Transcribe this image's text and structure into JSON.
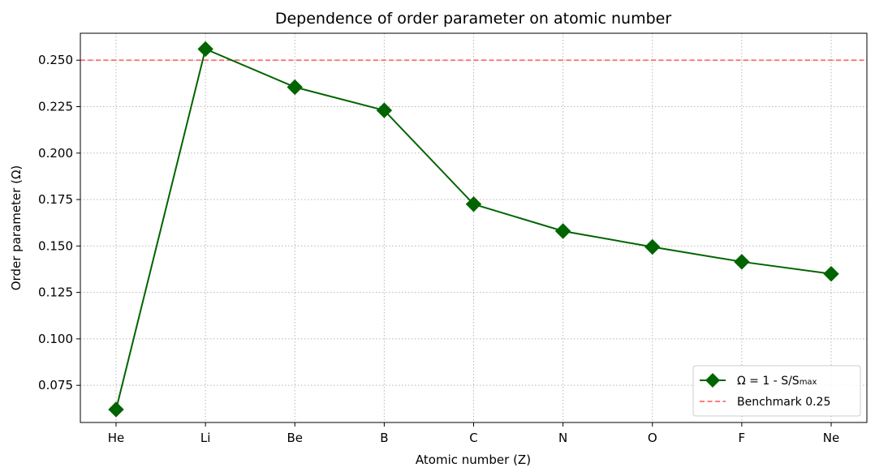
{
  "chart_data": {
    "type": "line",
    "title": "Dependence of order parameter on atomic number",
    "xlabel": "Atomic number (Z)",
    "ylabel": "Order parameter (Ω)",
    "categories": [
      "He",
      "Li",
      "Be",
      "B",
      "C",
      "N",
      "O",
      "F",
      "Ne"
    ],
    "series": [
      {
        "name": "Ω = 1 - S/Smax",
        "values": [
          0.062,
          0.256,
          0.2355,
          0.223,
          0.1725,
          0.158,
          0.1495,
          0.1415,
          0.135
        ],
        "color": "#006400",
        "marker": "diamond"
      }
    ],
    "reference_line": {
      "name": "Benchmark 0.25",
      "value": 0.25,
      "color": "#ff6b6b",
      "style": "dashed"
    },
    "ylim": [
      0.055,
      0.2645
    ],
    "yticks": [
      0.075,
      0.1,
      0.125,
      0.15,
      0.175,
      0.2,
      0.225,
      0.25
    ],
    "ytick_labels": [
      "0.075",
      "0.100",
      "0.125",
      "0.150",
      "0.175",
      "0.200",
      "0.225",
      "0.250"
    ],
    "grid": true,
    "legend_position": "lower-right"
  }
}
